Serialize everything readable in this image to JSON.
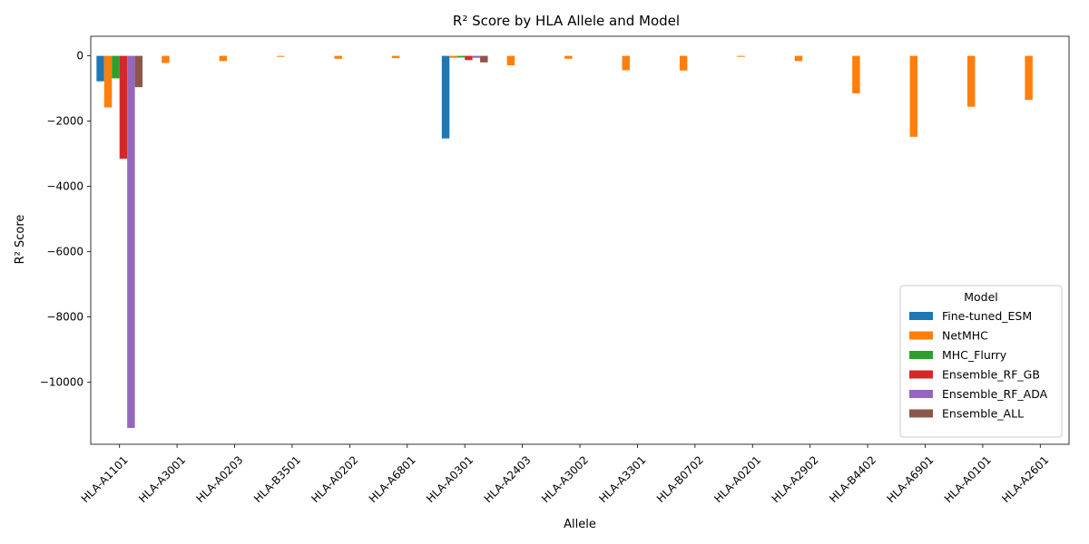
{
  "chart_data": {
    "type": "bar",
    "title": "R² Score by HLA Allele and Model",
    "xlabel": "Allele",
    "ylabel": "R² Score",
    "ylim": [
      -11900,
      600
    ],
    "yticks": [
      0,
      -2000,
      -4000,
      -6000,
      -8000,
      -10000
    ],
    "ytick_labels": [
      "0",
      "−2000",
      "−4000",
      "−6000",
      "−8000",
      "−10000"
    ],
    "categories": [
      "HLA-A1101",
      "HLA-A3001",
      "HLA-A0203",
      "HLA-B3501",
      "HLA-A0202",
      "HLA-A6801",
      "HLA-A0301",
      "HLA-A2403",
      "HLA-A3002",
      "HLA-A3301",
      "HLA-B0702",
      "HLA-A0201",
      "HLA-A2902",
      "HLA-B4402",
      "HLA-A6901",
      "HLA-A0101",
      "HLA-A2601"
    ],
    "legend": {
      "title": "Model",
      "position": "lower-right"
    },
    "series": [
      {
        "name": "Fine-tuned_ESM",
        "color": "#1f77b4",
        "values": [
          -780,
          null,
          null,
          null,
          null,
          null,
          -2530,
          null,
          null,
          null,
          null,
          null,
          null,
          null,
          null,
          null,
          null
        ]
      },
      {
        "name": "NetMHC",
        "color": "#ff7f0e",
        "values": [
          -1580,
          -220,
          -160,
          -30,
          -90,
          -70,
          -60,
          -290,
          -90,
          -440,
          -450,
          -30,
          -160,
          -1150,
          -2480,
          -1560,
          -1350
        ]
      },
      {
        "name": "MHC_Flurry",
        "color": "#2ca02c",
        "values": [
          -690,
          null,
          null,
          null,
          null,
          null,
          -50,
          null,
          null,
          null,
          null,
          null,
          null,
          null,
          null,
          null,
          null
        ]
      },
      {
        "name": "Ensemble_RF_GB",
        "color": "#d62728",
        "values": [
          -3150,
          null,
          null,
          null,
          null,
          null,
          -130,
          null,
          null,
          null,
          null,
          null,
          null,
          null,
          null,
          null,
          null
        ]
      },
      {
        "name": "Ensemble_RF_ADA",
        "color": "#9467bd",
        "values": [
          -11400,
          null,
          null,
          null,
          null,
          null,
          -60,
          null,
          null,
          null,
          null,
          null,
          null,
          null,
          null,
          null,
          null
        ]
      },
      {
        "name": "Ensemble_ALL",
        "color": "#8c564b",
        "values": [
          -960,
          null,
          null,
          null,
          null,
          null,
          -200,
          null,
          null,
          null,
          null,
          null,
          null,
          null,
          null,
          null,
          null
        ]
      }
    ]
  }
}
